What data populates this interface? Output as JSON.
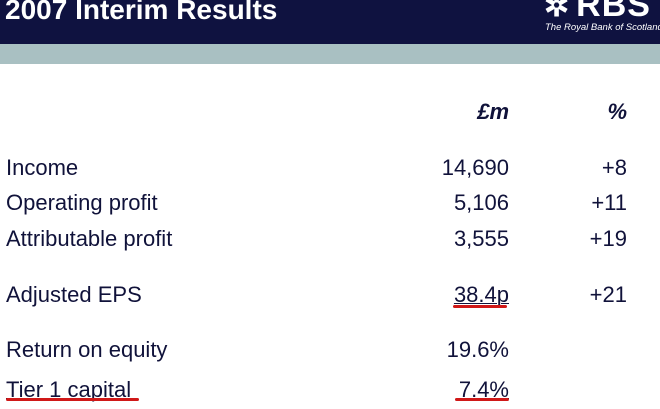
{
  "header": {
    "title": "2007 Interim Results",
    "logo_text": "RBS",
    "logo_tagline": "The Royal Bank of Scotland"
  },
  "table": {
    "columns": [
      "£m",
      "%"
    ],
    "rows": [
      {
        "label": "Income",
        "value": "14,690",
        "change": "+8"
      },
      {
        "label": "Operating profit",
        "value": "5,106",
        "change": "+11"
      },
      {
        "label": "Attributable profit",
        "value": "3,555",
        "change": "+19"
      },
      {
        "label": "Adjusted EPS",
        "value": "38.4p",
        "change": "+21"
      },
      {
        "label": "Return on equity",
        "value": "19.6%",
        "change": ""
      },
      {
        "label": "Tier 1 capital",
        "value": "7.4%",
        "change": ""
      }
    ]
  },
  "colors": {
    "header_bg": "#0f1240",
    "band": "#a9c0c2",
    "annotation": "#d01818"
  }
}
